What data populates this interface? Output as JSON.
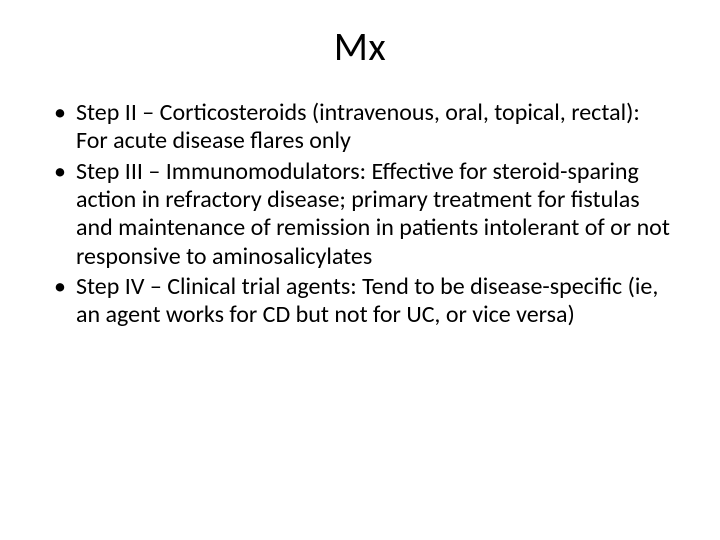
{
  "slide": {
    "title": "Mx",
    "title_fontsize": 40,
    "body_fontsize": 24,
    "background_color": "#ffffff",
    "text_color": "#000000",
    "bullet_char": "•",
    "bullets": [
      "Step II – Corticosteroids (intravenous, oral, topical, rectal): For acute disease flares only",
      "Step III – Immunomodulators: Effective for steroid-sparing action in refractory disease; primary treatment for fistulas and maintenance of remission in patients intolerant of or not responsive to aminosalicylates",
      "Step IV – Clinical trial agents: Tend to be disease-specific (ie, an agent works for CD but not for UC, or vice versa)"
    ]
  }
}
